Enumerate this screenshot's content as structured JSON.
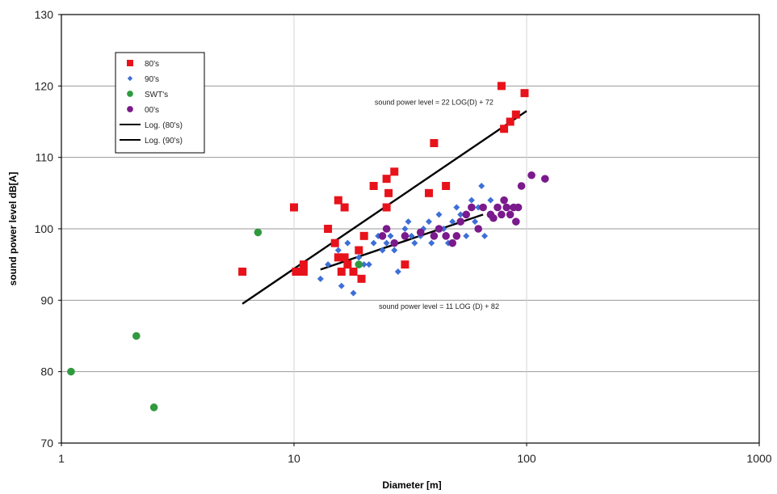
{
  "chart_data": {
    "type": "scatter",
    "xscale": "log",
    "xlim": [
      1,
      1000
    ],
    "ylim": [
      70,
      130
    ],
    "grid": true,
    "legend_position": "top-left",
    "xlabel": "Diameter [m]",
    "ylabel": "sound power level dB[A]",
    "x_ticks": [
      "1",
      "10",
      "100",
      "1000"
    ],
    "y_ticks": [
      "70",
      "80",
      "90",
      "100",
      "110",
      "120",
      "130"
    ],
    "series": [
      {
        "name": "80's",
        "marker": "square",
        "color": "#e8121b",
        "points": [
          [
            6,
            94
          ],
          [
            10,
            103
          ],
          [
            10.2,
            94
          ],
          [
            11,
            95
          ],
          [
            11,
            94
          ],
          [
            14,
            100
          ],
          [
            15,
            98
          ],
          [
            15.5,
            96
          ],
          [
            15.5,
            104
          ],
          [
            16,
            94
          ],
          [
            16.5,
            103
          ],
          [
            16.5,
            96
          ],
          [
            17,
            95
          ],
          [
            18,
            94
          ],
          [
            19,
            97
          ],
          [
            19.5,
            93
          ],
          [
            20,
            99
          ],
          [
            22,
            106
          ],
          [
            25,
            107
          ],
          [
            25,
            103
          ],
          [
            25.5,
            105
          ],
          [
            27,
            108
          ],
          [
            30,
            95
          ],
          [
            38,
            105
          ],
          [
            40,
            112
          ],
          [
            45,
            106
          ],
          [
            78,
            120
          ],
          [
            80,
            114
          ],
          [
            85,
            115
          ],
          [
            90,
            116
          ],
          [
            98,
            119
          ]
        ]
      },
      {
        "name": "90's",
        "marker": "diamond",
        "color": "#3d6fd6",
        "points": [
          [
            13,
            93
          ],
          [
            14,
            95
          ],
          [
            15.5,
            97
          ],
          [
            16,
            92
          ],
          [
            17,
            98
          ],
          [
            18,
            91
          ],
          [
            19,
            96
          ],
          [
            20,
            95
          ],
          [
            21,
            95
          ],
          [
            22,
            98
          ],
          [
            23,
            99
          ],
          [
            24,
            97
          ],
          [
            25,
            98
          ],
          [
            26,
            99
          ],
          [
            27,
            97
          ],
          [
            28,
            94
          ],
          [
            30,
            100
          ],
          [
            31,
            101
          ],
          [
            32,
            99
          ],
          [
            33,
            98
          ],
          [
            35,
            99
          ],
          [
            36,
            100
          ],
          [
            38,
            101
          ],
          [
            39,
            98
          ],
          [
            40,
            99
          ],
          [
            42,
            102
          ],
          [
            44,
            100
          ],
          [
            46,
            98
          ],
          [
            48,
            101
          ],
          [
            50,
            103
          ],
          [
            52,
            102
          ],
          [
            55,
            99
          ],
          [
            58,
            104
          ],
          [
            60,
            101
          ],
          [
            62,
            103
          ],
          [
            64,
            106
          ],
          [
            66,
            99
          ],
          [
            70,
            104
          ]
        ]
      },
      {
        "name": "SWT's",
        "marker": "circle",
        "color": "#2f9a3e",
        "points": [
          [
            1.1,
            80
          ],
          [
            2.1,
            85
          ],
          [
            2.5,
            75
          ],
          [
            7,
            99.5
          ],
          [
            19,
            95
          ]
        ]
      },
      {
        "name": "00's",
        "marker": "circle",
        "color": "#7a1a8c",
        "points": [
          [
            24,
            99
          ],
          [
            25,
            100
          ],
          [
            27,
            98
          ],
          [
            30,
            99
          ],
          [
            35,
            99.5
          ],
          [
            40,
            99
          ],
          [
            42,
            100
          ],
          [
            45,
            99
          ],
          [
            48,
            98
          ],
          [
            50,
            99
          ],
          [
            52,
            101
          ],
          [
            55,
            102
          ],
          [
            58,
            103
          ],
          [
            62,
            100
          ],
          [
            65,
            103
          ],
          [
            70,
            102
          ],
          [
            72,
            101.5
          ],
          [
            75,
            103
          ],
          [
            78,
            102
          ],
          [
            80,
            104
          ],
          [
            82,
            103
          ],
          [
            85,
            102
          ],
          [
            88,
            103
          ],
          [
            90,
            101
          ],
          [
            92,
            103
          ],
          [
            95,
            106
          ],
          [
            105,
            107.5
          ],
          [
            120,
            107
          ]
        ]
      }
    ],
    "trendlines": [
      {
        "name": "Log. (80's)",
        "color": "#000000",
        "x_range": [
          6,
          100
        ],
        "y_range": [
          89.5,
          116.5
        ],
        "equation": "sound power level = 22 LOG(D) + 72"
      },
      {
        "name": "Log. (90's)",
        "color": "#000000",
        "x_range": [
          13,
          65
        ],
        "y_range": [
          94.3,
          102
        ],
        "equation": "sound power level = 11 LOG (D) + 82"
      }
    ],
    "annotations": [
      {
        "text": "sound power level = 22 LOG(D) + 72",
        "x": 40,
        "y": 117.4
      },
      {
        "text": "sound power level = 11 LOG (D) + 82",
        "x": 42,
        "y": 88.8
      }
    ],
    "legend_entries": [
      "80's",
      "90's",
      "SWT's",
      "00's",
      "Log. (80's)",
      "Log. (90's)"
    ]
  }
}
